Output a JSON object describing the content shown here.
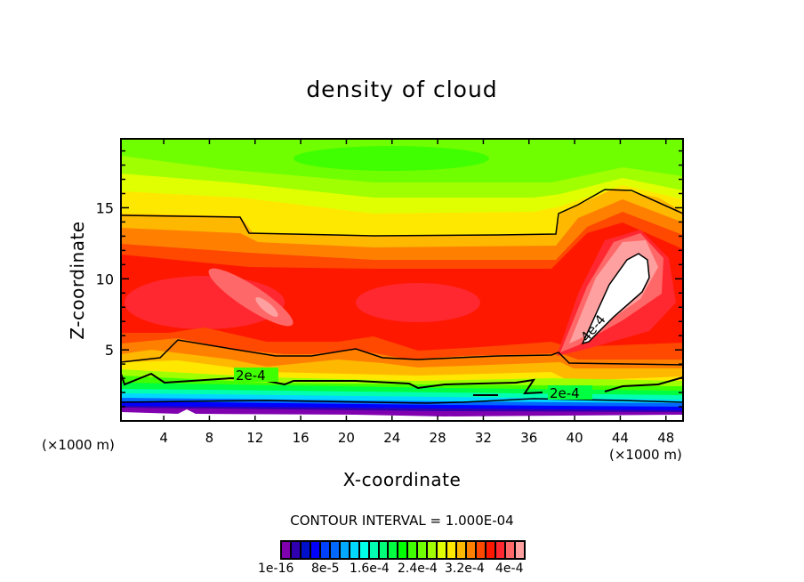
{
  "chart_data": {
    "type": "heatmap",
    "subtype": "filled-contour",
    "title": "density of cloud",
    "xlabel": "X-coordinate",
    "ylabel": "Z-coordinate",
    "x_unit_label": "(×1000 m)",
    "z_unit_label": "(×1000 m)",
    "xlim": [
      0.25,
      49.5
    ],
    "ylim": [
      0,
      19.85
    ],
    "x_ticks": [
      4,
      8,
      12,
      16,
      20,
      24,
      28,
      32,
      36,
      40,
      44,
      48
    ],
    "y_major_ticks": [
      5,
      10,
      15
    ],
    "y_minor_step": 1,
    "contour_interval_text": "CONTOUR INTERVAL = 1.000E-04",
    "contour_labels": [
      "2e-4",
      "2e-4",
      "4e-4"
    ],
    "colorbar": {
      "labels": [
        "1e-16",
        "8e-5",
        "1.6e-4",
        "2.4e-4",
        "3.2e-4",
        "4e-4"
      ],
      "colors": [
        "#8000b0",
        "#3000b0",
        "#0010c8",
        "#0000ff",
        "#0040ff",
        "#0068ff",
        "#00a8ff",
        "#00d8ff",
        "#00ffe8",
        "#00ffb0",
        "#00ff78",
        "#00ff40",
        "#00ff00",
        "#40ff00",
        "#70ff00",
        "#a0ff00",
        "#e0ff00",
        "#ffe800",
        "#ffb800",
        "#ff8000",
        "#ff4800",
        "#ff1800",
        "#ff2830",
        "#ff6868",
        "#ffa0a0"
      ]
    },
    "features": {
      "max_region_color": "#ffffff",
      "below_min_color": "#ffffff"
    }
  }
}
